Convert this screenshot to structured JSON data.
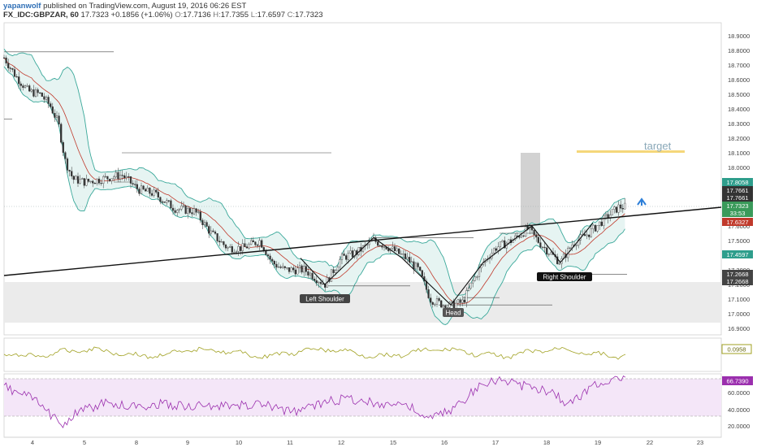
{
  "header": {
    "author": "yapanwolf",
    "published": "published on TradingView.com, August 19, 2016 06:26 EST",
    "symbol": "FX_IDC:GBPZAR, 60",
    "last": "17.7323",
    "change": "+0.1856 (+1.06%)",
    "o_label": "O:",
    "o": "17.7136",
    "h_label": "H:",
    "h": "17.7355",
    "l_label": "L:",
    "l": "17.6597",
    "c_label": "C:",
    "c": "17.7323"
  },
  "chart_data": {
    "type": "candlestick",
    "x_ticks": [
      "4",
      "5",
      "8",
      "9",
      "10",
      "11",
      "12",
      "15",
      "16",
      "17",
      "18",
      "19",
      "22",
      "23"
    ],
    "price_ticks": [
      "18.9000",
      "18.8000",
      "18.7000",
      "18.6000",
      "18.5000",
      "18.4000",
      "18.3000",
      "18.2000",
      "18.1000",
      "18.0000",
      "17.9000",
      "17.8000",
      "17.7000",
      "17.6000",
      "17.5000",
      "17.4000",
      "17.3000",
      "17.2000",
      "17.1000",
      "17.0000",
      "16.9000"
    ],
    "price_range": [
      16.9,
      19.0
    ],
    "price_labels": [
      {
        "text": "17.8058",
        "color": "#2e9e8c"
      },
      {
        "text": "17.7661",
        "color": "#333333"
      },
      {
        "text": "17.7661",
        "color": "#333333"
      },
      {
        "text": "17.7323",
        "color": "#3a9a5a"
      },
      {
        "text": "33:53",
        "color": "#3a9a5a"
      },
      {
        "text": "17.6327",
        "color": "#c0392b"
      },
      {
        "text": "17.4597",
        "color": "#2e9e8c"
      },
      {
        "text": "17.2668",
        "color": "#444444"
      },
      {
        "text": "17.2668",
        "color": "#444444"
      }
    ],
    "annotations": [
      "target",
      "Left Shoulder",
      "Head",
      "Right Shoulder"
    ],
    "indicator1": {
      "value": "0.0958",
      "color": "#a0a020"
    },
    "indicator2": {
      "value": "66.7390",
      "color": "#a020a0",
      "ticks": [
        "60.0000",
        "40.0000",
        "20.0000"
      ]
    },
    "colors": {
      "up": "#2e9e6e",
      "down": "#c0392b",
      "bb": "#3aa89a",
      "ma": "#c0392b",
      "rsi": "#9b2fae"
    }
  }
}
